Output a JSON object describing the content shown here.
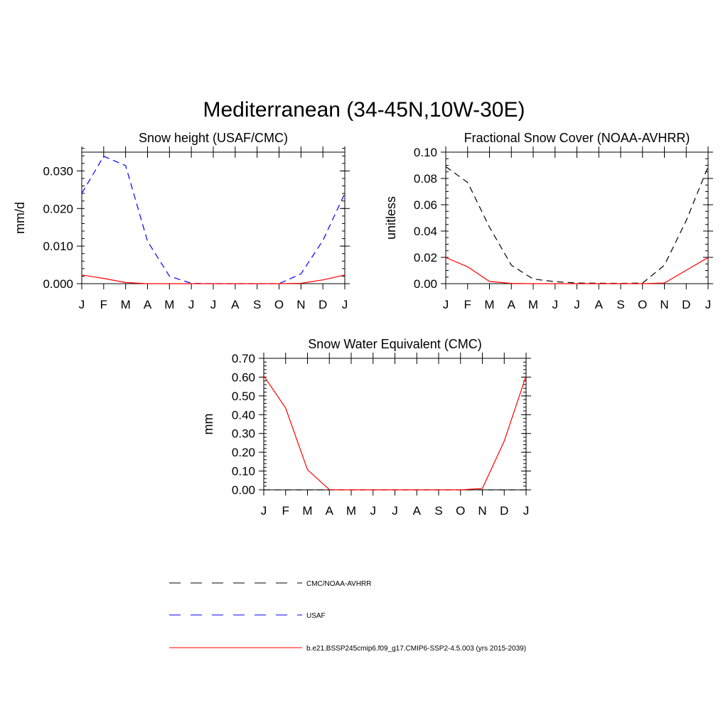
{
  "figure": {
    "title": "Mediterranean (34-45N,10W-30E)"
  },
  "legend": {
    "entries": [
      {
        "label": "CMC/NOAA-AVHRR",
        "color": "#000000",
        "dash": "dashed"
      },
      {
        "label": "USAF",
        "color": "#0000ff",
        "dash": "dashed"
      },
      {
        "label": "b.e21.BSSP245cmip6.f09_g17.CMIP6-SSP2-4.5.003 (yrs 2015-2039)",
        "color": "#ff0000",
        "dash": "solid"
      }
    ]
  },
  "chart_data": [
    {
      "type": "line",
      "title": "Snow height (USAF/CMC)",
      "xlabel": "",
      "ylabel": "mm/d",
      "categories": [
        "J",
        "F",
        "M",
        "A",
        "M",
        "J",
        "J",
        "A",
        "S",
        "O",
        "N",
        "D",
        "J"
      ],
      "ylim": [
        0,
        0.035
      ],
      "yticks": [
        0.0,
        0.01,
        0.02,
        0.03
      ],
      "ytick_labels": [
        "0.000",
        "0.010",
        "0.020",
        "0.030"
      ],
      "yminor_step": 0.002,
      "series": [
        {
          "name": "USAF",
          "color": "#0000ff",
          "dash": "dashed",
          "values": [
            0.024,
            0.0339,
            0.0314,
            0.0113,
            0.002,
            0.0001,
            0.0,
            0.0,
            0.0,
            0.0,
            0.0026,
            0.0115,
            0.024
          ]
        },
        {
          "name": "b.e21.BSSP245cmip6.f09_g17.CMIP6-SSP2-4.5.003 (yrs 2015-2039)",
          "color": "#ff0000",
          "dash": "solid",
          "values": [
            0.0023,
            0.0014,
            0.0003,
            0.0,
            0.0,
            0.0,
            0.0,
            0.0,
            0.0,
            0.0,
            0.0001,
            0.001,
            0.0023
          ]
        }
      ]
    },
    {
      "type": "line",
      "title": "Fractional Snow Cover (NOAA-AVHRR)",
      "xlabel": "",
      "ylabel": "unitless",
      "categories": [
        "J",
        "F",
        "M",
        "A",
        "M",
        "J",
        "J",
        "A",
        "S",
        "O",
        "N",
        "D",
        "J"
      ],
      "ylim": [
        0,
        0.1
      ],
      "yticks": [
        0.0,
        0.02,
        0.04,
        0.06,
        0.08,
        0.1
      ],
      "ytick_labels": [
        "0.00",
        "0.02",
        "0.04",
        "0.06",
        "0.08",
        "0.10"
      ],
      "yminor_step": 0.005,
      "series": [
        {
          "name": "CMC/NOAA-AVHRR",
          "color": "#000000",
          "dash": "dashed",
          "values": [
            0.089,
            0.077,
            0.043,
            0.014,
            0.0035,
            0.0015,
            0.0005,
            0.0003,
            0.0002,
            0.0005,
            0.014,
            0.048,
            0.089
          ]
        },
        {
          "name": "b.e21.BSSP245cmip6.f09_g17.CMIP6-SSP2-4.5.003 (yrs 2015-2039)",
          "color": "#ff0000",
          "dash": "solid",
          "values": [
            0.0199,
            0.0128,
            0.0017,
            0.0002,
            0.0,
            0.0,
            0.0,
            0.0,
            0.0,
            0.0,
            0.0005,
            0.0102,
            0.0199
          ]
        }
      ]
    },
    {
      "type": "line",
      "title": "Snow Water Equivalent (CMC)",
      "xlabel": "",
      "ylabel": "mm",
      "categories": [
        "J",
        "F",
        "M",
        "A",
        "M",
        "J",
        "J",
        "A",
        "S",
        "O",
        "N",
        "D",
        "J"
      ],
      "ylim": [
        0,
        0.7
      ],
      "yticks": [
        0.0,
        0.1,
        0.2,
        0.3,
        0.4,
        0.5,
        0.6,
        0.7
      ],
      "ytick_labels": [
        "0.00",
        "0.10",
        "0.20",
        "0.30",
        "0.40",
        "0.50",
        "0.60",
        "0.70"
      ],
      "yminor_step": 0.02,
      "series": [
        {
          "name": "CMC/NOAA-AVHRR",
          "color": "#000000",
          "dash": "dashed",
          "values": [
            0.0,
            0.0,
            0.0,
            0.0,
            0.0,
            0.0,
            0.0,
            0.0,
            0.0,
            0.0,
            0.0,
            0.0,
            0.0
          ]
        },
        {
          "name": "b.e21.BSSP245cmip6.f09_g17.CMIP6-SSP2-4.5.003 (yrs 2015-2039)",
          "color": "#ff0000",
          "dash": "solid",
          "values": [
            0.607,
            0.435,
            0.107,
            0.001,
            0.0,
            0.0,
            0.0,
            0.0,
            0.0,
            0.0,
            0.007,
            0.26,
            0.607
          ]
        }
      ]
    }
  ]
}
